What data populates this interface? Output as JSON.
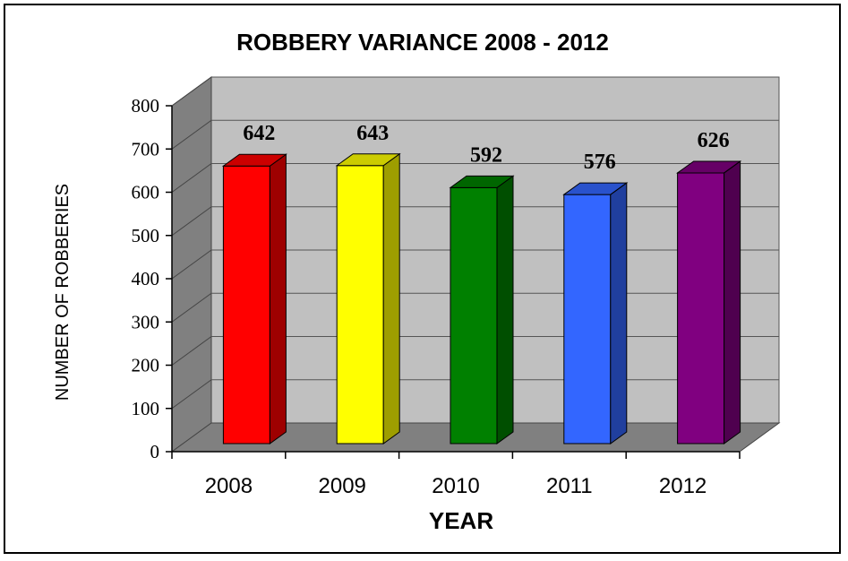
{
  "chart_data": {
    "type": "bar",
    "title": "ROBBERY VARIANCE 2008 - 2012",
    "xlabel": "YEAR",
    "ylabel": "NUMBER OF ROBBERIES",
    "categories": [
      "2008",
      "2009",
      "2010",
      "2011",
      "2012"
    ],
    "values": [
      642,
      643,
      592,
      576,
      626
    ],
    "data_labels": [
      "642",
      "643",
      "592",
      "576",
      "626"
    ],
    "ylim": [
      0,
      800
    ],
    "yticks": [
      0,
      100,
      200,
      300,
      400,
      500,
      600,
      700,
      800
    ],
    "ytick_labels": [
      "0",
      "100",
      "200",
      "300",
      "400",
      "500",
      "600",
      "700",
      "800"
    ],
    "colors": [
      "#ff0000",
      "#ffff00",
      "#008000",
      "#3366ff",
      "#800080"
    ],
    "grid": true,
    "style": "3d"
  }
}
